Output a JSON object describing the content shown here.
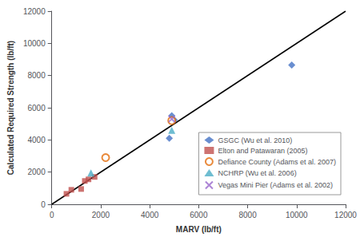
{
  "chart_data": {
    "type": "scatter",
    "xlabel": "MARV (lb/ft)",
    "ylabel": "Calculated Required Strength (lb/ft)",
    "xlim": [
      0,
      12000
    ],
    "ylim": [
      0,
      12000
    ],
    "xticks": [
      0,
      2000,
      4000,
      6000,
      8000,
      10000,
      12000
    ],
    "yticks": [
      0,
      2000,
      4000,
      6000,
      8000,
      10000,
      12000
    ],
    "grid": false,
    "legend": "right",
    "series": [
      {
        "type": "line",
        "color": "#000000",
        "line_style": "solid",
        "values": [
          [
            0,
            0
          ],
          [
            12000,
            12000
          ]
        ]
      },
      {
        "name": "GSGC (Wu et al. 2010)",
        "marker": "diamond",
        "color": "#4472C4",
        "values": [
          [
            4800,
            4100
          ],
          [
            4900,
            5500
          ],
          [
            5000,
            5250
          ],
          [
            9800,
            8650
          ]
        ]
      },
      {
        "name": "Elton and Patawaran (2005)",
        "marker": "square",
        "color": "#C0504D",
        "values": [
          [
            600,
            650
          ],
          [
            800,
            900
          ],
          [
            1200,
            950
          ],
          [
            1350,
            1450
          ],
          [
            1500,
            1550
          ],
          [
            1750,
            1700
          ]
        ]
      },
      {
        "name": "Defiance County (Adams et al. 2007)",
        "marker": "circle-open",
        "color": "#E36C09",
        "values": [
          [
            2200,
            2900
          ],
          [
            4900,
            5200
          ]
        ]
      },
      {
        "name": "NCHRP (Wu et al. 2006)",
        "marker": "triangle",
        "color": "#4BACC6",
        "values": [
          [
            1600,
            1950
          ],
          [
            4900,
            4600
          ]
        ]
      },
      {
        "name": "Vegas Mini Pier (Adams et al. 2002)",
        "marker": "x",
        "color": "#9966CC",
        "values": [
          [
            4900,
            5300
          ]
        ]
      }
    ]
  }
}
